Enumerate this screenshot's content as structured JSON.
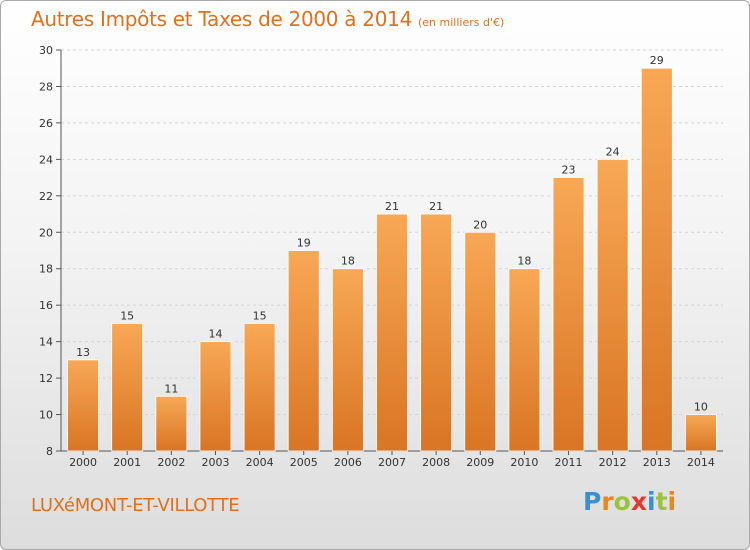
{
  "header": {
    "title": "Autres Impôts et Taxes de 2000 à 2014",
    "unit": "(en milliers d'€)"
  },
  "footer": {
    "commune": "LUXéMONT-ET-VILLOTTE",
    "logo_letters": [
      "P",
      "r",
      "o",
      "x",
      "i",
      "t",
      "i"
    ]
  },
  "colors": {
    "accent": "#e0701c",
    "bar_top": "#f8a855",
    "bar_bottom": "#d97524",
    "bar_edge": "#ffffff"
  },
  "chart_data": {
    "type": "bar",
    "title": "Autres Impôts et Taxes de 2000 à 2014",
    "categories": [
      "2000",
      "2001",
      "2002",
      "2003",
      "2004",
      "2005",
      "2006",
      "2007",
      "2008",
      "2009",
      "2010",
      "2011",
      "2012",
      "2013",
      "2014"
    ],
    "values": [
      13,
      15,
      11,
      14,
      15,
      19,
      18,
      21,
      21,
      20,
      18,
      23,
      24,
      29,
      10
    ],
    "xlabel": "",
    "ylabel": "",
    "ylim": [
      8,
      30
    ],
    "yticks": [
      8,
      10,
      12,
      14,
      16,
      18,
      20,
      22,
      24,
      26,
      28,
      30
    ],
    "grid": true
  }
}
